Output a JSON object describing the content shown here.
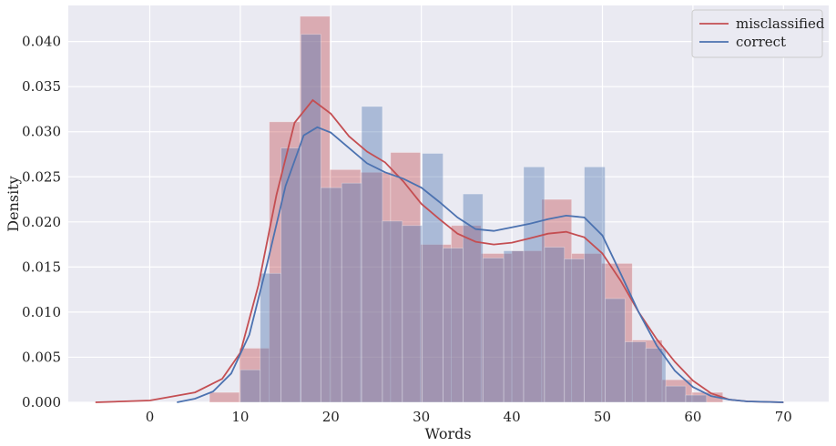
{
  "chart_data": {
    "type": "histogram",
    "xlabel": "Words",
    "ylabel": "Density",
    "xlim": [
      -9,
      75
    ],
    "ylim": [
      0,
      0.044
    ],
    "xticks": [
      0,
      10,
      20,
      30,
      40,
      50,
      60,
      70
    ],
    "yticks": [
      0.0,
      0.005,
      0.01,
      0.015,
      0.02,
      0.025,
      0.03,
      0.035,
      0.04
    ],
    "ytick_labels": [
      "0.000",
      "0.005",
      "0.010",
      "0.015",
      "0.020",
      "0.025",
      "0.030",
      "0.035",
      "0.040"
    ],
    "grid": true,
    "legend_position": "top-right",
    "series": [
      {
        "name": "misclassified",
        "line_color": "#c44e52",
        "bar_color": "#c44e52",
        "bin_edges": [
          6.6,
          9.9,
          13.2,
          16.6,
          19.9,
          23.3,
          26.6,
          29.9,
          33.3,
          36.6,
          40.0,
          43.3,
          46.6,
          49.9,
          53.3,
          56.6,
          59.9,
          63.3
        ],
        "values": [
          0.0011,
          0.006,
          0.0311,
          0.0428,
          0.0258,
          0.0255,
          0.0277,
          0.0175,
          0.0196,
          0.0165,
          0.0168,
          0.0225,
          0.0165,
          0.0154,
          0.0069,
          0.0025,
          0.0011
        ],
        "kde": [
          [
            -6,
            0.0
          ],
          [
            0,
            0.0002
          ],
          [
            5,
            0.0011
          ],
          [
            8,
            0.0026
          ],
          [
            10,
            0.0055
          ],
          [
            12,
            0.013
          ],
          [
            14,
            0.023
          ],
          [
            16,
            0.031
          ],
          [
            18,
            0.0335
          ],
          [
            20,
            0.032
          ],
          [
            22,
            0.0295
          ],
          [
            24,
            0.0278
          ],
          [
            26,
            0.0266
          ],
          [
            28,
            0.0245
          ],
          [
            30,
            0.022
          ],
          [
            32,
            0.0203
          ],
          [
            34,
            0.0187
          ],
          [
            36,
            0.0178
          ],
          [
            38,
            0.0175
          ],
          [
            40,
            0.0177
          ],
          [
            42,
            0.0182
          ],
          [
            44,
            0.0187
          ],
          [
            46,
            0.0189
          ],
          [
            48,
            0.0183
          ],
          [
            50,
            0.0165
          ],
          [
            52,
            0.0135
          ],
          [
            54,
            0.01
          ],
          [
            56,
            0.007
          ],
          [
            58,
            0.0045
          ],
          [
            60,
            0.0024
          ],
          [
            62,
            0.001
          ],
          [
            64,
            0.0003
          ],
          [
            66,
            0.0001
          ],
          [
            70,
            0.0
          ]
        ]
      },
      {
        "name": "correct",
        "line_color": "#4c72b0",
        "bar_color": "#4c72b0",
        "bin_edges": [
          10.0,
          12.2,
          14.5,
          16.7,
          18.9,
          21.2,
          23.4,
          25.7,
          27.9,
          30.1,
          32.4,
          34.6,
          36.8,
          39.1,
          41.3,
          43.6,
          45.8,
          48.0,
          50.3,
          52.5,
          54.8,
          57.0,
          59.2,
          61.5
        ],
        "values": [
          0.0036,
          0.0143,
          0.0282,
          0.0408,
          0.0238,
          0.0243,
          0.0328,
          0.0201,
          0.0196,
          0.0276,
          0.0171,
          0.0231,
          0.016,
          0.0168,
          0.0261,
          0.0172,
          0.0159,
          0.0261,
          0.0115,
          0.0067,
          0.006,
          0.0018,
          0.0008
        ],
        "kde": [
          [
            3,
            0.0
          ],
          [
            5,
            0.0004
          ],
          [
            7,
            0.0012
          ],
          [
            9,
            0.0032
          ],
          [
            11,
            0.0075
          ],
          [
            13,
            0.0155
          ],
          [
            15,
            0.024
          ],
          [
            17,
            0.0296
          ],
          [
            18.5,
            0.0305
          ],
          [
            20,
            0.0299
          ],
          [
            22,
            0.0282
          ],
          [
            24,
            0.0265
          ],
          [
            26,
            0.0255
          ],
          [
            28,
            0.0248
          ],
          [
            30,
            0.0238
          ],
          [
            32,
            0.0222
          ],
          [
            34,
            0.0205
          ],
          [
            36,
            0.0192
          ],
          [
            38,
            0.019
          ],
          [
            40,
            0.0194
          ],
          [
            42,
            0.0198
          ],
          [
            44,
            0.0203
          ],
          [
            46,
            0.0207
          ],
          [
            48,
            0.0205
          ],
          [
            50,
            0.0185
          ],
          [
            52,
            0.0143
          ],
          [
            54,
            0.01
          ],
          [
            56,
            0.0063
          ],
          [
            58,
            0.0035
          ],
          [
            60,
            0.0017
          ],
          [
            62,
            0.0007
          ],
          [
            64,
            0.0003
          ],
          [
            66,
            0.0001
          ],
          [
            70,
            0.0
          ]
        ]
      }
    ]
  }
}
